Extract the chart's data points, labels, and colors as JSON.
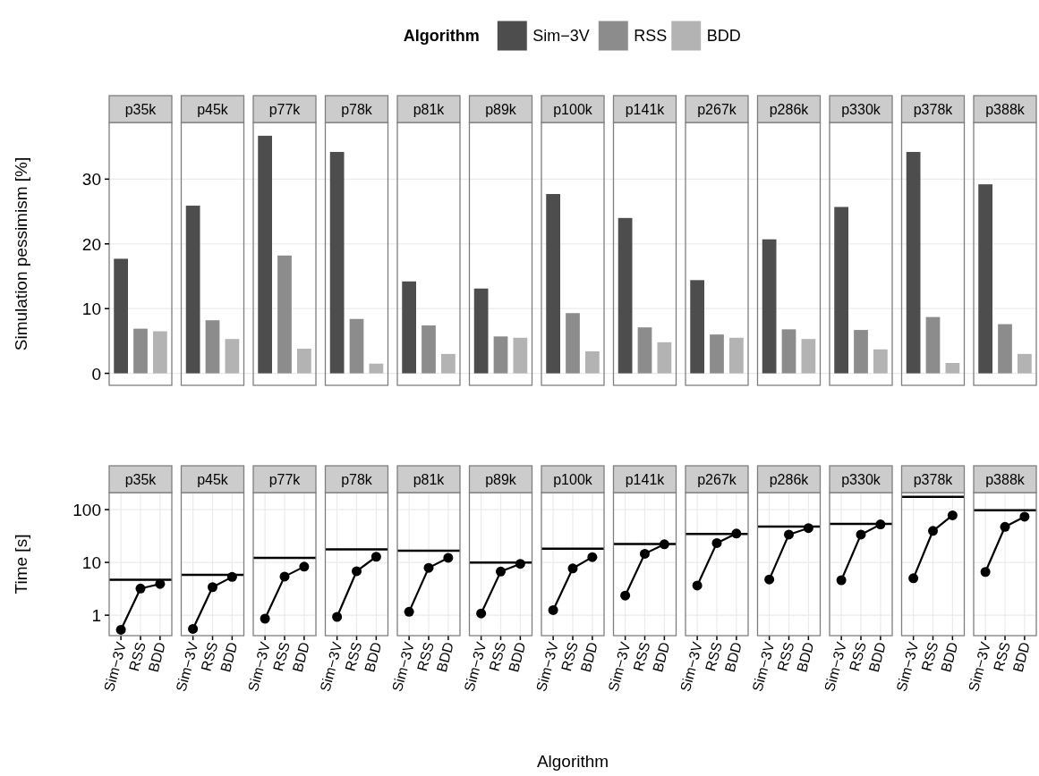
{
  "chart_data": [
    {
      "type": "bar",
      "ylabel": "Simulation pessimism [%]",
      "legend": "top",
      "legend_title": "Algorithm",
      "categories": [
        "p35k",
        "p45k",
        "p77k",
        "p78k",
        "p81k",
        "p89k",
        "p100k",
        "p141k",
        "p267k",
        "p286k",
        "p330k",
        "p378k",
        "p388k"
      ],
      "series": [
        {
          "name": "Sim−3V",
          "color": "#4d4d4d",
          "values": [
            17.7,
            25.9,
            36.7,
            34.2,
            14.2,
            13.1,
            27.7,
            24.0,
            14.4,
            20.7,
            25.7,
            34.2,
            29.2
          ]
        },
        {
          "name": "RSS",
          "color": "#8c8c8c",
          "values": [
            6.9,
            8.2,
            18.2,
            8.4,
            7.4,
            5.7,
            9.3,
            7.1,
            6.0,
            6.8,
            6.7,
            8.7,
            7.6
          ]
        },
        {
          "name": "BDD",
          "color": "#b3b3b3",
          "values": [
            6.5,
            5.3,
            3.8,
            1.5,
            3.0,
            5.5,
            3.4,
            4.8,
            5.5,
            5.3,
            3.7,
            1.6,
            3.0
          ]
        }
      ],
      "ylim": [
        -1.85,
        38.75
      ],
      "yticks": [
        0,
        10,
        20,
        30
      ],
      "grid": "y"
    },
    {
      "type": "line",
      "title": "p35k",
      "ylabel": "Time [s]",
      "categories": [
        "Sim−3V",
        "RSS",
        "BDD"
      ],
      "series": [
        {
          "color": "#000000",
          "values": [
            0.53,
            3.2,
            3.9
          ]
        }
      ],
      "marker": "circle",
      "log": true,
      "ylim": [
        0.41,
        210
      ],
      "yticks": [
        1,
        10,
        100
      ],
      "grid": true,
      "ref_lines": [
        {
          "axis": "y",
          "value": 4.7,
          "color": "#000000"
        }
      ]
    },
    {
      "type": "line",
      "title": "p45k",
      "categories": [
        "Sim−3V",
        "RSS",
        "BDD"
      ],
      "series": [
        {
          "color": "#000000",
          "values": [
            0.55,
            3.4,
            5.3
          ]
        }
      ],
      "marker": "circle",
      "log": true,
      "ylim": [
        0.41,
        210
      ],
      "yticks": [
        1,
        10,
        100
      ],
      "grid": true,
      "tick_labels": "x",
      "ref_lines": [
        {
          "axis": "y",
          "value": 5.8,
          "color": "#000000"
        }
      ]
    },
    {
      "type": "line",
      "title": "p77k",
      "categories": [
        "Sim−3V",
        "RSS",
        "BDD"
      ],
      "series": [
        {
          "color": "#000000",
          "values": [
            0.86,
            5.4,
            8.3
          ]
        }
      ],
      "marker": "circle",
      "log": true,
      "ylim": [
        0.41,
        210
      ],
      "yticks": [
        1,
        10,
        100
      ],
      "grid": true,
      "tick_labels": "x",
      "ref_lines": [
        {
          "axis": "y",
          "value": 12.2,
          "color": "#000000"
        }
      ]
    },
    {
      "type": "line",
      "title": "p78k",
      "categories": [
        "Sim−3V",
        "RSS",
        "BDD"
      ],
      "series": [
        {
          "color": "#000000",
          "values": [
            0.93,
            6.8,
            12.8
          ]
        }
      ],
      "marker": "circle",
      "log": true,
      "ylim": [
        0.41,
        210
      ],
      "yticks": [
        1,
        10,
        100
      ],
      "grid": true,
      "tick_labels": "x",
      "ref_lines": [
        {
          "axis": "y",
          "value": 17.6,
          "color": "#000000"
        }
      ]
    },
    {
      "type": "line",
      "title": "p81k",
      "categories": [
        "Sim−3V",
        "RSS",
        "BDD"
      ],
      "series": [
        {
          "color": "#000000",
          "values": [
            1.16,
            7.9,
            12.2
          ]
        }
      ],
      "marker": "circle",
      "log": true,
      "ylim": [
        0.41,
        210
      ],
      "yticks": [
        1,
        10,
        100
      ],
      "grid": true,
      "tick_labels": "x",
      "ref_lines": [
        {
          "axis": "y",
          "value": 16.6,
          "color": "#000000"
        }
      ]
    },
    {
      "type": "line",
      "title": "p89k",
      "categories": [
        "Sim−3V",
        "RSS",
        "BDD"
      ],
      "series": [
        {
          "color": "#000000",
          "values": [
            1.08,
            6.7,
            9.4
          ]
        }
      ],
      "marker": "circle",
      "log": true,
      "ylim": [
        0.41,
        210
      ],
      "yticks": [
        1,
        10,
        100
      ],
      "grid": true,
      "tick_labels": "x",
      "ref_lines": [
        {
          "axis": "y",
          "value": 9.9,
          "color": "#000000"
        }
      ]
    },
    {
      "type": "line",
      "title": "p100k",
      "xlabel": "Algorithm",
      "categories": [
        "Sim−3V",
        "RSS",
        "BDD"
      ],
      "series": [
        {
          "color": "#000000",
          "values": [
            1.25,
            7.7,
            12.6
          ]
        }
      ],
      "marker": "circle",
      "log": true,
      "ylim": [
        0.41,
        210
      ],
      "yticks": [
        1,
        10,
        100
      ],
      "grid": true,
      "tick_labels": "x",
      "ref_lines": [
        {
          "axis": "y",
          "value": 18.1,
          "color": "#000000"
        }
      ]
    },
    {
      "type": "line",
      "title": "p141k",
      "categories": [
        "Sim−3V",
        "RSS",
        "BDD"
      ],
      "series": [
        {
          "color": "#000000",
          "values": [
            2.35,
            14.6,
            22
          ]
        }
      ],
      "marker": "circle",
      "log": true,
      "ylim": [
        0.41,
        210
      ],
      "yticks": [
        1,
        10,
        100
      ],
      "grid": true,
      "tick_labels": "x",
      "ref_lines": [
        {
          "axis": "y",
          "value": 22.3,
          "color": "#000000"
        }
      ]
    },
    {
      "type": "line",
      "title": "p267k",
      "categories": [
        "Sim−3V",
        "RSS",
        "BDD"
      ],
      "series": [
        {
          "color": "#000000",
          "values": [
            3.65,
            23.3,
            35.2
          ]
        }
      ],
      "marker": "circle",
      "log": true,
      "ylim": [
        0.41,
        210
      ],
      "yticks": [
        1,
        10,
        100
      ],
      "grid": true,
      "tick_labels": "x",
      "ref_lines": [
        {
          "axis": "y",
          "value": 34.7,
          "color": "#000000"
        }
      ]
    },
    {
      "type": "line",
      "title": "p286k",
      "categories": [
        "Sim−3V",
        "RSS",
        "BDD"
      ],
      "series": [
        {
          "color": "#000000",
          "values": [
            4.75,
            33.7,
            44.6
          ]
        }
      ],
      "marker": "circle",
      "log": true,
      "ylim": [
        0.41,
        210
      ],
      "yticks": [
        1,
        10,
        100
      ],
      "grid": true,
      "tick_labels": "x",
      "ref_lines": [
        {
          "axis": "y",
          "value": 47.9,
          "color": "#000000"
        }
      ]
    },
    {
      "type": "line",
      "title": "p330k",
      "categories": [
        "Sim−3V",
        "RSS",
        "BDD"
      ],
      "series": [
        {
          "color": "#000000",
          "values": [
            4.6,
            33.7,
            52.4
          ]
        }
      ],
      "marker": "circle",
      "log": true,
      "ylim": [
        0.41,
        210
      ],
      "yticks": [
        1,
        10,
        100
      ],
      "grid": true,
      "tick_labels": "x",
      "ref_lines": [
        {
          "axis": "y",
          "value": 53.9,
          "color": "#000000"
        }
      ]
    },
    {
      "type": "line",
      "title": "p378k",
      "categories": [
        "Sim−3V",
        "RSS",
        "BDD"
      ],
      "series": [
        {
          "color": "#000000",
          "values": [
            5.0,
            39.6,
            77.9
          ]
        }
      ],
      "marker": "circle",
      "log": true,
      "ylim": [
        0.41,
        210
      ],
      "yticks": [
        1,
        10,
        100
      ],
      "grid": true,
      "tick_labels": "x",
      "ref_lines": [
        {
          "axis": "y",
          "value": 175,
          "color": "#000000"
        }
      ]
    },
    {
      "type": "line",
      "title": "p388k",
      "categories": [
        "Sim−3V",
        "RSS",
        "BDD"
      ],
      "series": [
        {
          "color": "#000000",
          "values": [
            6.6,
            47.2,
            73.4
          ]
        }
      ],
      "marker": "circle",
      "log": true,
      "ylim": [
        0.41,
        210
      ],
      "yticks": [
        1,
        10,
        100
      ],
      "grid": true,
      "tick_labels": "x",
      "ref_lines": [
        {
          "axis": "y",
          "value": 97,
          "color": "#000000"
        }
      ]
    }
  ]
}
